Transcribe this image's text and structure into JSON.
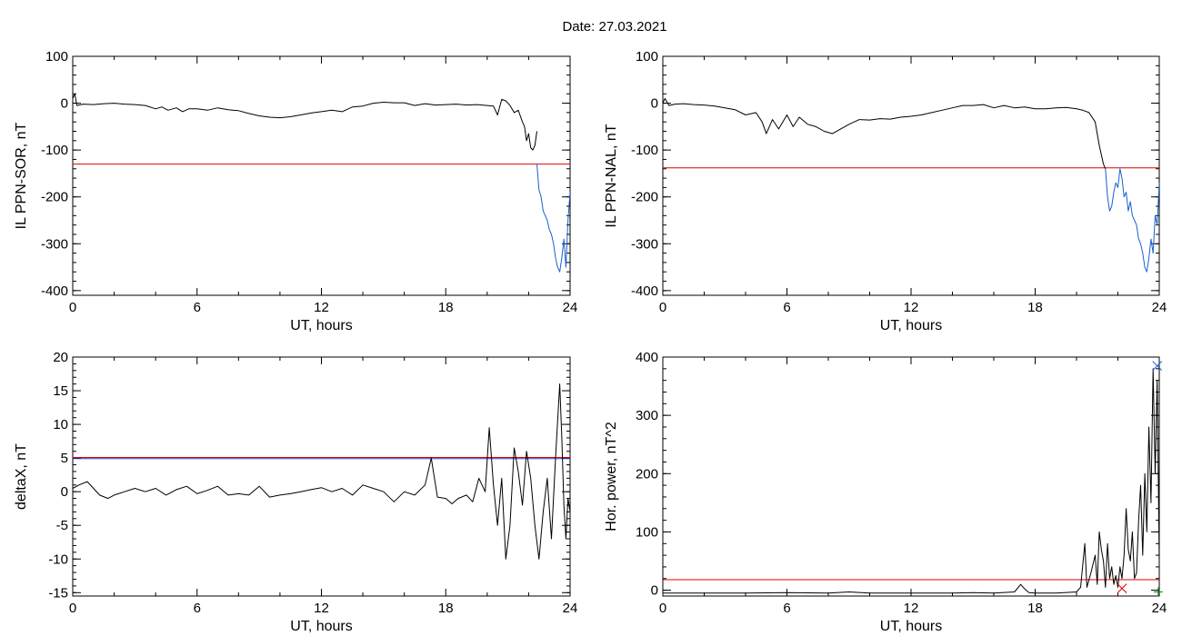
{
  "title": "Date:  27.03.2021",
  "colors": {
    "black_trace": "#000000",
    "blue_trace": "#1a5fd0",
    "threshold": "#e00000",
    "purple_threshold": "#7b3a8f",
    "marker_red": "#e00000",
    "marker_green": "#118811",
    "marker_blue": "#2266cc"
  },
  "chart_data": [
    {
      "type": "line",
      "xlabel": "UT, hours",
      "ylabel": "IL PPN-SOR, nT",
      "xlim": [
        0,
        24
      ],
      "ylim": [
        -410,
        100
      ],
      "xticks": [
        "0",
        "6",
        "12",
        "18",
        "24"
      ],
      "yticks": [
        "100",
        "0",
        "-100",
        "-200",
        "-300",
        "-400"
      ],
      "threshold": -130,
      "series": [
        {
          "color": "black",
          "x": [
            0.0,
            0.1,
            0.2,
            0.5,
            1.0,
            1.5,
            2.0,
            2.5,
            3.0,
            3.5,
            4.0,
            4.3,
            4.6,
            5.0,
            5.3,
            5.6,
            6.0,
            6.5,
            7.0,
            7.5,
            8.0,
            8.5,
            9.0,
            9.5,
            10.0,
            10.5,
            11.0,
            11.5,
            12.0,
            12.5,
            13.0,
            13.5,
            14.0,
            14.5,
            15.0,
            15.5,
            16.0,
            16.5,
            17.0,
            17.5,
            18.0,
            18.5,
            19.0,
            19.5,
            20.0,
            20.3,
            20.5,
            20.7,
            20.9,
            21.1,
            21.3,
            21.5,
            21.7,
            21.8,
            21.9,
            22.0,
            22.1,
            22.2,
            22.3,
            22.4
          ],
          "y": [
            10,
            20,
            -5,
            -2,
            -3,
            -1,
            0,
            -2,
            -3,
            -5,
            -12,
            -8,
            -15,
            -10,
            -18,
            -12,
            -12,
            -15,
            -10,
            -14,
            -16,
            -22,
            -27,
            -30,
            -31,
            -29,
            -25,
            -21,
            -18,
            -15,
            -18,
            -8,
            -6,
            0,
            2,
            1,
            1,
            -5,
            -1,
            -4,
            -3,
            -2,
            -4,
            -3,
            -5,
            -6,
            -25,
            8,
            5,
            -5,
            -20,
            -15,
            -40,
            -50,
            -80,
            -65,
            -95,
            -100,
            -90,
            -60
          ]
        },
        {
          "color": "blue",
          "x": [
            22.4,
            22.5,
            22.6,
            22.7,
            22.8,
            22.9,
            23.0,
            23.1,
            23.2,
            23.3,
            23.4,
            23.5,
            23.6,
            23.7,
            23.8,
            23.9,
            24.0
          ],
          "y": [
            -130,
            -185,
            -200,
            -230,
            -240,
            -250,
            -270,
            -280,
            -300,
            -330,
            -350,
            -360,
            -330,
            -290,
            -350,
            -250,
            -190
          ]
        }
      ]
    },
    {
      "type": "line",
      "xlabel": "UT, hours",
      "ylabel": "IL PPN-NAL, nT",
      "xlim": [
        0,
        24
      ],
      "ylim": [
        -410,
        100
      ],
      "xticks": [
        "0",
        "6",
        "12",
        "18",
        "24"
      ],
      "yticks": [
        "100",
        "0",
        "-100",
        "-200",
        "-300",
        "-400"
      ],
      "threshold": -138,
      "series": [
        {
          "color": "black",
          "x": [
            0.0,
            0.1,
            0.3,
            0.6,
            1.0,
            1.5,
            2.0,
            2.5,
            3.0,
            3.5,
            4.0,
            4.5,
            4.8,
            5.0,
            5.3,
            5.6,
            6.0,
            6.3,
            6.6,
            7.0,
            7.4,
            7.8,
            8.2,
            8.6,
            9.0,
            9.5,
            10.0,
            10.5,
            11.0,
            11.5,
            12.0,
            12.5,
            13.0,
            13.5,
            14.0,
            14.5,
            15.0,
            15.5,
            16.0,
            16.5,
            17.0,
            17.5,
            18.0,
            18.5,
            19.0,
            19.5,
            20.0,
            20.3,
            20.6,
            20.9,
            21.1,
            21.3,
            21.4
          ],
          "y": [
            0,
            10,
            -5,
            -2,
            -1,
            -3,
            -4,
            -6,
            -10,
            -14,
            -25,
            -20,
            -40,
            -65,
            -35,
            -55,
            -25,
            -50,
            -30,
            -45,
            -50,
            -60,
            -65,
            -55,
            -45,
            -35,
            -36,
            -33,
            -34,
            -30,
            -28,
            -25,
            -20,
            -15,
            -10,
            -5,
            -5,
            -3,
            -10,
            -5,
            -10,
            -8,
            -12,
            -12,
            -10,
            -9,
            -12,
            -15,
            -20,
            -40,
            -90,
            -130,
            -140
          ]
        },
        {
          "color": "blue",
          "x": [
            21.4,
            21.5,
            21.6,
            21.7,
            21.8,
            21.9,
            22.0,
            22.1,
            22.2,
            22.3,
            22.4,
            22.5,
            22.6,
            22.7,
            22.8,
            22.9,
            23.0,
            23.1,
            23.2,
            23.3,
            23.4,
            23.5,
            23.6,
            23.7,
            23.8,
            23.9,
            24.0
          ],
          "y": [
            -140,
            -200,
            -230,
            -220,
            -190,
            -170,
            -180,
            -140,
            -160,
            -200,
            -190,
            -230,
            -210,
            -240,
            -250,
            -260,
            -290,
            -300,
            -320,
            -350,
            -360,
            -330,
            -290,
            -320,
            -240,
            -260,
            -170
          ]
        }
      ]
    },
    {
      "type": "line",
      "xlabel": "UT, hours",
      "ylabel": "deltaX, nT",
      "xlim": [
        0,
        24
      ],
      "ylim": [
        -15.5,
        20
      ],
      "xticks": [
        "0",
        "6",
        "12",
        "18",
        "24"
      ],
      "yticks": [
        "20",
        "15",
        "10",
        "5",
        "0",
        "-5",
        "-10",
        "-15"
      ],
      "threshold": 5,
      "series": [
        {
          "color": "black",
          "x": [
            0.0,
            0.3,
            0.7,
            1.0,
            1.3,
            1.7,
            2.0,
            2.5,
            3.0,
            3.5,
            4.0,
            4.5,
            5.0,
            5.5,
            6.0,
            6.5,
            7.0,
            7.5,
            8.0,
            8.5,
            9.0,
            9.5,
            10.0,
            10.5,
            11.0,
            11.5,
            12.0,
            12.5,
            13.0,
            13.5,
            14.0,
            14.5,
            15.0,
            15.5,
            16.0,
            16.5,
            17.0,
            17.3,
            17.6,
            18.0,
            18.3,
            18.6,
            19.0,
            19.3,
            19.6,
            19.9,
            20.1,
            20.3,
            20.5,
            20.7,
            20.9,
            21.1,
            21.3,
            21.5,
            21.7,
            21.9,
            22.1,
            22.3,
            22.5,
            22.7,
            22.9,
            23.1,
            23.3,
            23.5,
            23.6,
            23.7,
            23.8,
            23.9,
            24.0
          ],
          "y": [
            0.5,
            1.0,
            1.5,
            0.5,
            -0.5,
            -1.0,
            -0.5,
            0.0,
            0.5,
            0.0,
            0.5,
            -0.5,
            0.3,
            0.8,
            -0.3,
            0.2,
            0.8,
            -0.5,
            -0.3,
            -0.5,
            0.8,
            -0.8,
            -0.5,
            -0.3,
            0.0,
            0.3,
            0.6,
            0.0,
            0.5,
            -0.5,
            1.0,
            0.5,
            0.0,
            -1.5,
            0.0,
            -0.5,
            1.0,
            5.0,
            -0.8,
            -1.0,
            -1.8,
            -1.0,
            -0.5,
            -1.5,
            2.0,
            0.0,
            9.5,
            1.0,
            -5.0,
            2.0,
            -10.0,
            -5.0,
            6.5,
            3.0,
            -2.0,
            6.0,
            2.0,
            -5.0,
            -10.0,
            -3.0,
            2.0,
            -7.0,
            5.0,
            16.0,
            8.0,
            -2.0,
            -7.0,
            -1.0,
            -3.0
          ]
        }
      ]
    },
    {
      "type": "line",
      "xlabel": "UT, hours",
      "ylabel": "Hor. power, nT^2",
      "xlim": [
        0,
        24
      ],
      "ylim": [
        -10,
        400
      ],
      "xticks": [
        "0",
        "6",
        "12",
        "18",
        "24"
      ],
      "yticks": [
        "400",
        "300",
        "200",
        "100",
        "0"
      ],
      "threshold": 18,
      "series": [
        {
          "color": "black",
          "x": [
            0.0,
            2.0,
            4.0,
            6.0,
            8.0,
            9.0,
            10.0,
            12.0,
            14.0,
            15.0,
            16.0,
            17.0,
            17.3,
            17.5,
            17.7,
            18.0,
            19.0,
            20.0,
            20.2,
            20.4,
            20.5,
            20.7,
            20.9,
            21.0,
            21.1,
            21.2,
            21.3,
            21.4,
            21.5,
            21.6,
            21.7,
            21.8,
            21.9,
            22.0,
            22.1,
            22.2,
            22.3,
            22.4,
            22.5,
            22.6,
            22.7,
            22.8,
            22.9,
            23.0,
            23.1,
            23.2,
            23.3,
            23.4,
            23.5,
            23.6,
            23.7,
            23.8,
            23.9,
            24.0
          ],
          "y": [
            -5,
            -5,
            -5,
            -4,
            -5,
            -3,
            -5,
            -5,
            -5,
            -4,
            -5,
            -3,
            10,
            2,
            -4,
            -5,
            -5,
            -3,
            5,
            80,
            5,
            30,
            60,
            10,
            100,
            70,
            50,
            5,
            80,
            20,
            40,
            10,
            25,
            5,
            40,
            20,
            60,
            140,
            70,
            50,
            100,
            20,
            30,
            120,
            180,
            60,
            200,
            100,
            280,
            150,
            380,
            200,
            360,
            50
          ]
        }
      ],
      "markers": [
        {
          "symbol": "x",
          "color": "red",
          "x": 22.2,
          "y": 3
        },
        {
          "symbol": "x",
          "color": "blue",
          "x": 23.9,
          "y": 385
        },
        {
          "symbol": "+",
          "color": "green",
          "x": 23.95,
          "y": -3
        }
      ]
    }
  ]
}
